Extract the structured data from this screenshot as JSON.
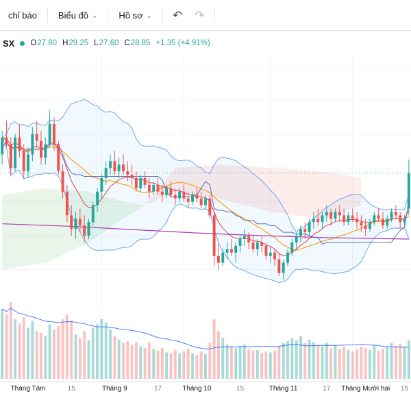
{
  "toolbar": {
    "items": [
      {
        "label": "chỉ báo"
      },
      {
        "label": "Biểu đồ"
      },
      {
        "label": "Hồ sơ"
      }
    ],
    "chevron": "⌄",
    "undo_icon": "↶",
    "redo_icon": "↷"
  },
  "legend": {
    "ticker_fragment": "SX",
    "open_label": "O",
    "open": "27.80",
    "high_label": "H",
    "high": "29.25",
    "low_label": "L",
    "low": "27.60",
    "close_label": "C",
    "close": "28.85",
    "change": "+1.35 (+4.91%)"
  },
  "colors": {
    "up": "#26a69a",
    "down": "#ef5350",
    "vol_up": "rgba(38,166,154,0.40)",
    "vol_down": "rgba(239,83,80,0.35)",
    "bb_band": "#5b9cf6",
    "bb_fill": "rgba(33,150,243,0.06)",
    "bb_basis": "#f59e0b",
    "ema": "#d32f2f",
    "kijun": "#3f51b5",
    "long_ma": "#9c27b0",
    "vol_ma": "#2962ff",
    "price_line": "#26a69a",
    "cloud_green": "rgba(76,175,80,0.13)",
    "cloud_red": "rgba(244,67,54,0.10)",
    "grid": "#f2f4f8",
    "axis_border": "#e0e3eb",
    "tick_major": "#131722",
    "tick_minor": "#787b86"
  },
  "chart_data": {
    "type": "candlestick",
    "title": "",
    "ohlc_current": {
      "open": 27.8,
      "high": 29.25,
      "low": 27.6,
      "close": 28.85,
      "change": 1.35,
      "change_pct": 4.91
    },
    "y_range": [
      25.2,
      32.2
    ],
    "price_line": 28.85,
    "x_ticks": [
      {
        "i": 6,
        "label": "Tháng Tám",
        "major": true
      },
      {
        "i": 16,
        "label": "15",
        "major": false
      },
      {
        "i": 26,
        "label": "Tháng 9",
        "major": true
      },
      {
        "i": 36,
        "label": "17",
        "major": false
      },
      {
        "i": 45,
        "label": "Tháng 10",
        "major": true
      },
      {
        "i": 55,
        "label": "15",
        "major": false
      },
      {
        "i": 65,
        "label": "Tháng 11",
        "major": true
      },
      {
        "i": 75,
        "label": "17",
        "major": false
      },
      {
        "i": 84,
        "label": "Tháng Mười hai",
        "major": true
      },
      {
        "i": 93,
        "label": "15",
        "major": false
      }
    ],
    "candles": [
      [
        29.4,
        30.1,
        29.1,
        29.9,
        820
      ],
      [
        29.9,
        30.4,
        29.6,
        29.7,
        760
      ],
      [
        29.7,
        29.9,
        28.8,
        29.0,
        900
      ],
      [
        29.0,
        30.0,
        28.9,
        29.9,
        700
      ],
      [
        29.9,
        30.3,
        29.3,
        29.5,
        650
      ],
      [
        29.5,
        29.7,
        28.7,
        28.9,
        720
      ],
      [
        28.9,
        29.6,
        28.7,
        29.4,
        600
      ],
      [
        29.4,
        30.2,
        29.2,
        30.0,
        680
      ],
      [
        30.0,
        30.4,
        29.6,
        29.8,
        560
      ],
      [
        29.8,
        30.1,
        29.1,
        29.3,
        540
      ],
      [
        29.3,
        29.9,
        29.1,
        29.7,
        500
      ],
      [
        29.7,
        30.7,
        29.6,
        30.3,
        640
      ],
      [
        30.3,
        30.5,
        29.5,
        29.7,
        580
      ],
      [
        29.7,
        29.8,
        28.8,
        28.9,
        620
      ],
      [
        28.9,
        29.1,
        28.1,
        28.3,
        700
      ],
      [
        28.3,
        28.5,
        27.4,
        27.6,
        750
      ],
      [
        27.6,
        27.9,
        27.0,
        27.2,
        680
      ],
      [
        27.2,
        27.7,
        26.9,
        27.5,
        520
      ],
      [
        27.5,
        27.8,
        27.1,
        27.3,
        480
      ],
      [
        27.3,
        27.6,
        26.8,
        27.0,
        560
      ],
      [
        27.0,
        27.5,
        26.9,
        27.4,
        450
      ],
      [
        27.4,
        28.0,
        27.3,
        27.9,
        600
      ],
      [
        27.9,
        28.4,
        27.7,
        28.3,
        640
      ],
      [
        28.3,
        28.8,
        28.1,
        28.7,
        700
      ],
      [
        28.7,
        29.2,
        28.5,
        29.0,
        660
      ],
      [
        29.0,
        29.4,
        28.8,
        29.2,
        580
      ],
      [
        29.2,
        29.5,
        28.8,
        28.9,
        500
      ],
      [
        28.9,
        29.3,
        28.7,
        29.1,
        460
      ],
      [
        29.1,
        29.4,
        28.8,
        28.9,
        420
      ],
      [
        28.9,
        29.2,
        28.6,
        28.8,
        440
      ],
      [
        28.8,
        29.1,
        28.5,
        28.7,
        400
      ],
      [
        28.7,
        28.9,
        28.3,
        28.4,
        430
      ],
      [
        28.4,
        28.8,
        28.3,
        28.7,
        380
      ],
      [
        28.7,
        28.9,
        28.4,
        28.5,
        360
      ],
      [
        28.5,
        28.7,
        28.1,
        28.3,
        420
      ],
      [
        28.3,
        28.6,
        28.2,
        28.5,
        350
      ],
      [
        28.5,
        28.7,
        28.2,
        28.3,
        330
      ],
      [
        28.3,
        28.5,
        28.0,
        28.2,
        360
      ],
      [
        28.2,
        28.5,
        28.1,
        28.4,
        310
      ],
      [
        28.4,
        28.6,
        28.1,
        28.2,
        300
      ],
      [
        28.2,
        28.4,
        27.9,
        28.1,
        340
      ],
      [
        28.1,
        28.4,
        28.0,
        28.3,
        300
      ],
      [
        28.3,
        28.5,
        28.0,
        28.1,
        320
      ],
      [
        28.1,
        28.3,
        27.8,
        28.0,
        350
      ],
      [
        28.0,
        28.3,
        27.9,
        28.2,
        300
      ],
      [
        28.2,
        28.4,
        28.0,
        28.1,
        280
      ],
      [
        28.1,
        28.3,
        27.8,
        27.9,
        320
      ],
      [
        27.9,
        28.2,
        27.8,
        28.1,
        290
      ],
      [
        28.1,
        28.2,
        27.5,
        27.6,
        420
      ],
      [
        27.6,
        27.7,
        26.1,
        26.4,
        700
      ],
      [
        26.4,
        26.8,
        26.0,
        26.2,
        560
      ],
      [
        26.2,
        26.6,
        26.1,
        26.5,
        480
      ],
      [
        26.5,
        26.8,
        26.3,
        26.6,
        400
      ],
      [
        26.6,
        26.9,
        26.4,
        26.5,
        380
      ],
      [
        26.5,
        26.8,
        26.2,
        26.7,
        360
      ],
      [
        26.7,
        27.0,
        26.5,
        26.9,
        390
      ],
      [
        26.9,
        27.2,
        26.7,
        27.0,
        400
      ],
      [
        27.0,
        27.1,
        26.6,
        26.8,
        350
      ],
      [
        26.8,
        27.0,
        26.5,
        26.6,
        330
      ],
      [
        26.6,
        26.9,
        26.4,
        26.8,
        340
      ],
      [
        26.8,
        27.0,
        26.5,
        26.7,
        300
      ],
      [
        26.7,
        26.8,
        26.3,
        26.4,
        320
      ],
      [
        26.4,
        26.7,
        26.2,
        26.5,
        310
      ],
      [
        26.5,
        26.6,
        26.1,
        26.3,
        330
      ],
      [
        26.3,
        26.5,
        25.8,
        25.9,
        380
      ],
      [
        25.9,
        26.3,
        25.7,
        26.2,
        420
      ],
      [
        26.2,
        26.6,
        26.1,
        26.5,
        440
      ],
      [
        26.5,
        26.9,
        26.4,
        26.8,
        480
      ],
      [
        26.8,
        27.1,
        26.6,
        27.0,
        450
      ],
      [
        27.0,
        27.3,
        26.8,
        27.2,
        500
      ],
      [
        27.2,
        27.4,
        26.9,
        27.1,
        420
      ],
      [
        27.1,
        27.5,
        27.0,
        27.4,
        460
      ],
      [
        27.4,
        27.7,
        27.2,
        27.5,
        430
      ],
      [
        27.5,
        27.8,
        27.3,
        27.4,
        400
      ],
      [
        27.4,
        27.7,
        27.2,
        27.6,
        380
      ],
      [
        27.6,
        27.9,
        27.4,
        27.7,
        420
      ],
      [
        27.7,
        27.8,
        27.3,
        27.5,
        360
      ],
      [
        27.5,
        27.8,
        27.4,
        27.7,
        390
      ],
      [
        27.7,
        27.9,
        27.4,
        27.6,
        350
      ],
      [
        27.6,
        27.8,
        27.3,
        27.4,
        370
      ],
      [
        27.4,
        27.7,
        27.3,
        27.6,
        340
      ],
      [
        27.6,
        27.8,
        27.4,
        27.5,
        320
      ],
      [
        27.5,
        27.7,
        27.2,
        27.4,
        350
      ],
      [
        27.4,
        27.6,
        27.1,
        27.3,
        380
      ],
      [
        27.3,
        27.5,
        27.0,
        27.2,
        360
      ],
      [
        27.2,
        27.5,
        27.1,
        27.4,
        340
      ],
      [
        27.4,
        27.7,
        27.3,
        27.6,
        400
      ],
      [
        27.6,
        27.8,
        27.4,
        27.5,
        330
      ],
      [
        27.5,
        27.7,
        27.2,
        27.3,
        350
      ],
      [
        27.3,
        27.6,
        27.2,
        27.5,
        370
      ],
      [
        27.5,
        27.8,
        27.4,
        27.7,
        420
      ],
      [
        27.7,
        27.9,
        27.5,
        27.6,
        390
      ],
      [
        27.6,
        27.7,
        27.2,
        27.4,
        410
      ],
      [
        27.4,
        27.6,
        27.3,
        27.5,
        380
      ],
      [
        27.8,
        29.25,
        27.6,
        28.85,
        450
      ]
    ],
    "overlays": {
      "bollinger": {
        "period": 20,
        "mult": 2
      },
      "ema_period": 9,
      "kijun_period": 26,
      "volume_ma_period": 20,
      "long_ma_points": [
        [
          0,
          27.35
        ],
        [
          15,
          27.28
        ],
        [
          30,
          27.18
        ],
        [
          45,
          27.08
        ],
        [
          60,
          27.0
        ],
        [
          75,
          26.94
        ],
        [
          94,
          26.9
        ]
      ],
      "cloud_green_points": [
        [
          0,
          28.2,
          26.0
        ],
        [
          10,
          28.4,
          26.2
        ],
        [
          20,
          28.3,
          26.8
        ],
        [
          28,
          28.0,
          27.5
        ],
        [
          33,
          27.9,
          27.9
        ]
      ],
      "cloud_red_points": [
        [
          33,
          27.9,
          27.9
        ],
        [
          40,
          28.3,
          29.0
        ],
        [
          50,
          28.1,
          29.1
        ],
        [
          62,
          27.7,
          29.0
        ],
        [
          74,
          27.5,
          28.9
        ],
        [
          83,
          27.9,
          28.7
        ]
      ]
    }
  }
}
